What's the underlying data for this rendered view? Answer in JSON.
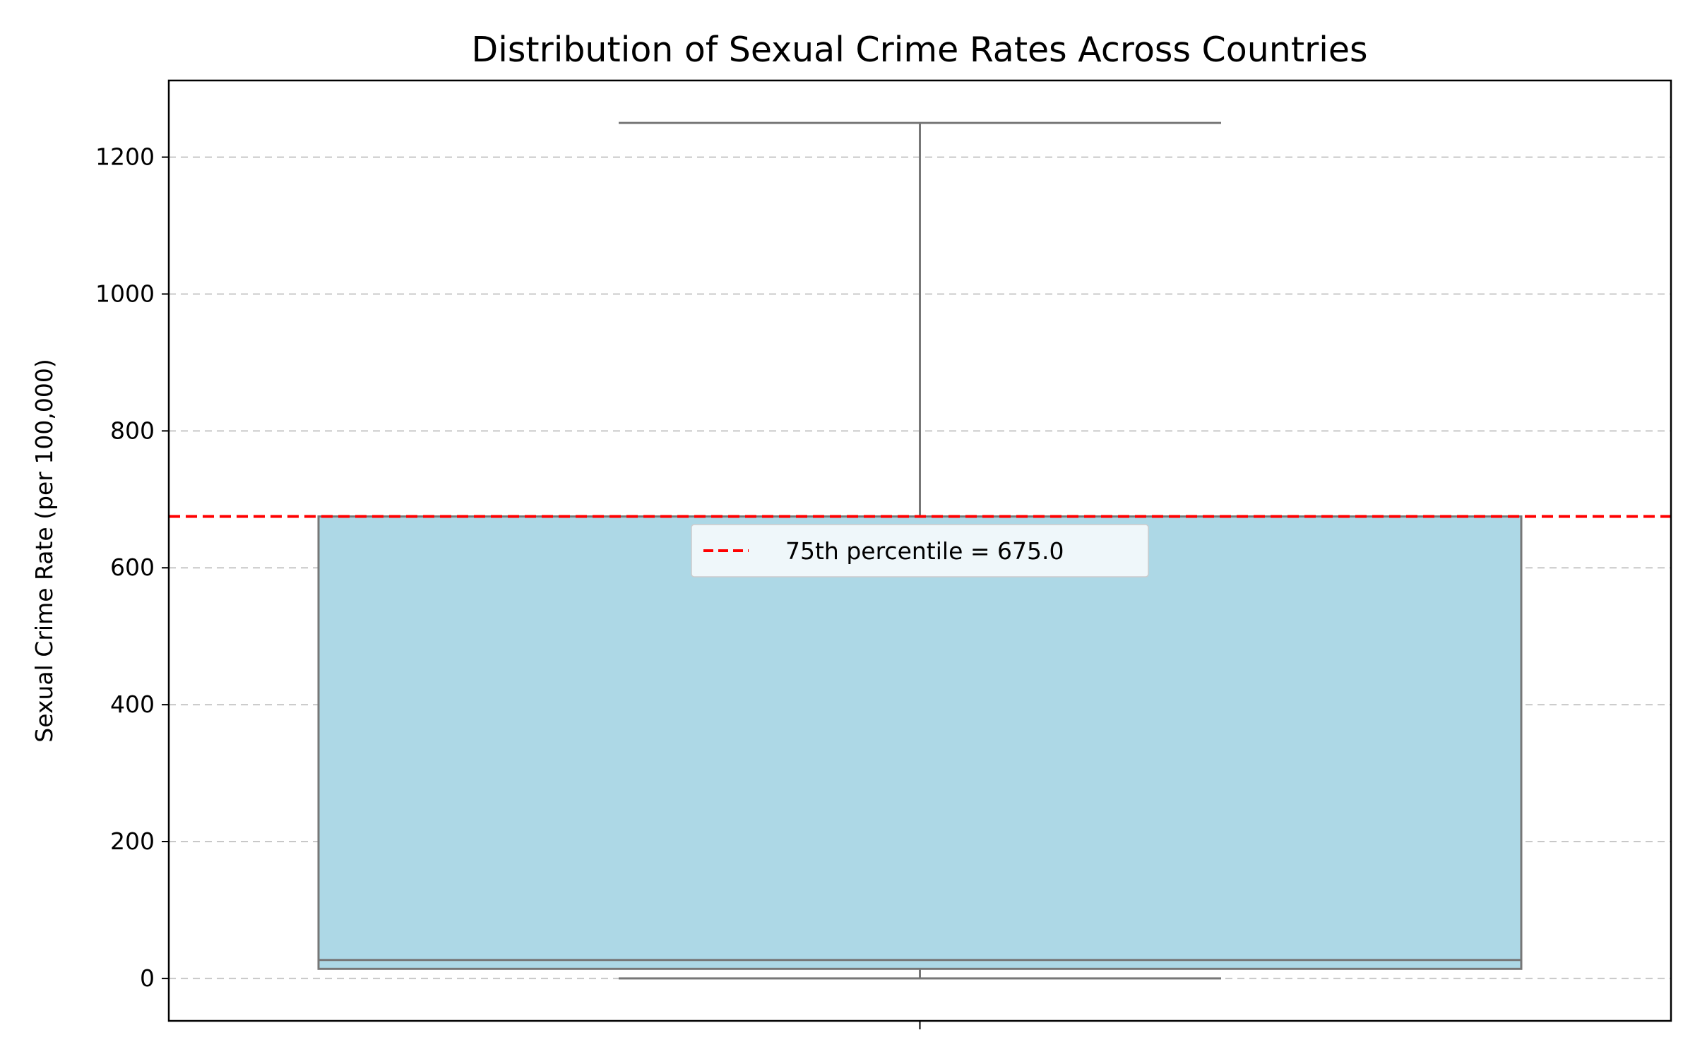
{
  "chart_data": {
    "type": "box",
    "title": "Distribution of Sexual Crime Rates Across Countries",
    "xlabel": "",
    "ylabel": "Sexual Crime Rate (per 100,000)",
    "ylim": [
      -62,
      1312
    ],
    "yticks": [
      "0",
      "200",
      "400",
      "600",
      "800",
      "1000",
      "1200"
    ],
    "ytick_values": [
      0,
      200,
      400,
      600,
      800,
      1000,
      1200
    ],
    "grid": "y, dashed",
    "box": {
      "whisker_low": 0,
      "q1": 14,
      "median": 27,
      "q3": 675,
      "whisker_high": 1250
    },
    "reference_line": {
      "value": 675.0,
      "label": "75th percentile = 675.0",
      "color": "#ff0000",
      "style": "dashed"
    },
    "legend": {
      "position": "upper center"
    },
    "colors": {
      "box_fill": "#add8e6",
      "box_edge": "#777777",
      "grid": "#c8c8c8"
    }
  }
}
